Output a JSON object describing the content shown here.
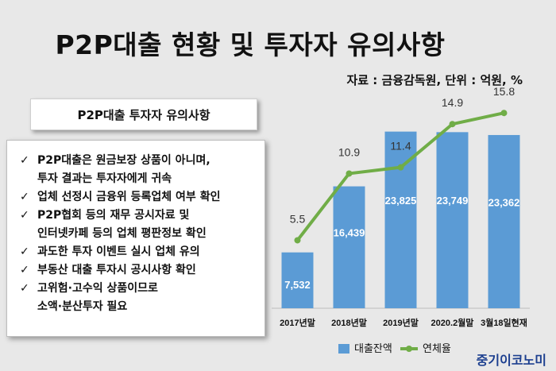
{
  "title": "P2P대출 현황 및 투자자 유의사항",
  "source_note": "자료 : 금융감독원, 단위 : 억원, %",
  "panel": {
    "header": "P2P대출 투자자 유의사항",
    "items": [
      {
        "lines": [
          "P2P대출은 원금보장 상품이 아니며,",
          "투자 결과는 투자자에게 귀속"
        ]
      },
      {
        "lines": [
          "업체 선정시 금융위 등록업체 여부 확인"
        ]
      },
      {
        "lines": [
          "P2P협회 등의 재무 공시자료 및",
          "인터넷카페 등의 업체 평판정보 확인"
        ]
      },
      {
        "lines": [
          "과도한 투자 이벤트 실시 업체 유의"
        ]
      },
      {
        "lines": [
          "부동산 대출 투자시 공시사항 확인"
        ]
      },
      {
        "lines": [
          "고위험·고수익 상품이므로",
          "소액·분산투자 필요"
        ]
      }
    ],
    "check_glyph": "✓"
  },
  "chart_data": {
    "type": "bar",
    "categories": [
      "2017년말",
      "2018년말",
      "2019년말",
      "2020.2월말",
      "3월18일현재"
    ],
    "series": [
      {
        "name": "대출잔액",
        "type": "bar",
        "values": [
          7532,
          16439,
          23825,
          23749,
          23362
        ],
        "labels": [
          "7,532",
          "16,439",
          "23,825",
          "23,749",
          "23,362"
        ],
        "color": "#5b9bd5"
      },
      {
        "name": "연체율",
        "type": "line",
        "values": [
          5.5,
          10.9,
          11.4,
          14.9,
          15.8
        ],
        "labels": [
          "5.5",
          "10.9",
          "11.4",
          "14.9",
          "15.8"
        ],
        "color": "#70ad47"
      }
    ],
    "bar_ylim": [
      0,
      30000
    ],
    "line_ylim": [
      0,
      18
    ],
    "legend_position": "bottom"
  },
  "brand": "중기이코노미"
}
